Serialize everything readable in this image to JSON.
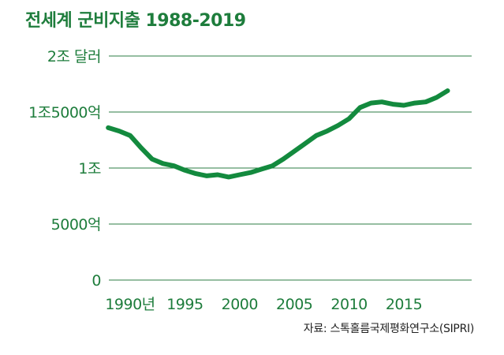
{
  "chart_data": {
    "type": "line",
    "title": "전세계 군비지출 1988-2019",
    "x": [
      1988,
      1989,
      1990,
      1991,
      1992,
      1993,
      1994,
      1995,
      1996,
      1997,
      1998,
      1999,
      2000,
      2001,
      2002,
      2003,
      2004,
      2005,
      2006,
      2007,
      2008,
      2009,
      2010,
      2011,
      2012,
      2013,
      2014,
      2015,
      2016,
      2017,
      2018,
      2019
    ],
    "series": [
      {
        "values": [
          1.36,
          1.33,
          1.29,
          1.18,
          1.08,
          1.04,
          1.02,
          0.98,
          0.95,
          0.93,
          0.94,
          0.92,
          0.94,
          0.96,
          0.99,
          1.02,
          1.08,
          1.15,
          1.22,
          1.29,
          1.33,
          1.38,
          1.44,
          1.54,
          1.58,
          1.59,
          1.57,
          1.56,
          1.58,
          1.59,
          1.63,
          1.69
        ]
      }
    ],
    "xticks": [
      1990,
      1995,
      2000,
      2005,
      2010,
      2015
    ],
    "xtick_labels": [
      "1990년",
      "1995",
      "2000",
      "2005",
      "2010",
      "2015"
    ],
    "yticks": [
      0,
      0.5,
      1,
      1.5,
      2
    ],
    "ytick_labels": [
      "0",
      "5000억",
      "1조",
      "1조5000억",
      "2조 달러"
    ],
    "xlim": [
      1988,
      2019
    ],
    "ylim": [
      0,
      2
    ],
    "grid": true,
    "colors": {
      "title": "#1e7d3c",
      "line": "#138a3e",
      "ticks": "#1e7d3c",
      "grid": "#2e7d46",
      "source": "#222222"
    },
    "source": "자료: 스톡홀름국제평화연구소(SIPRI)"
  }
}
